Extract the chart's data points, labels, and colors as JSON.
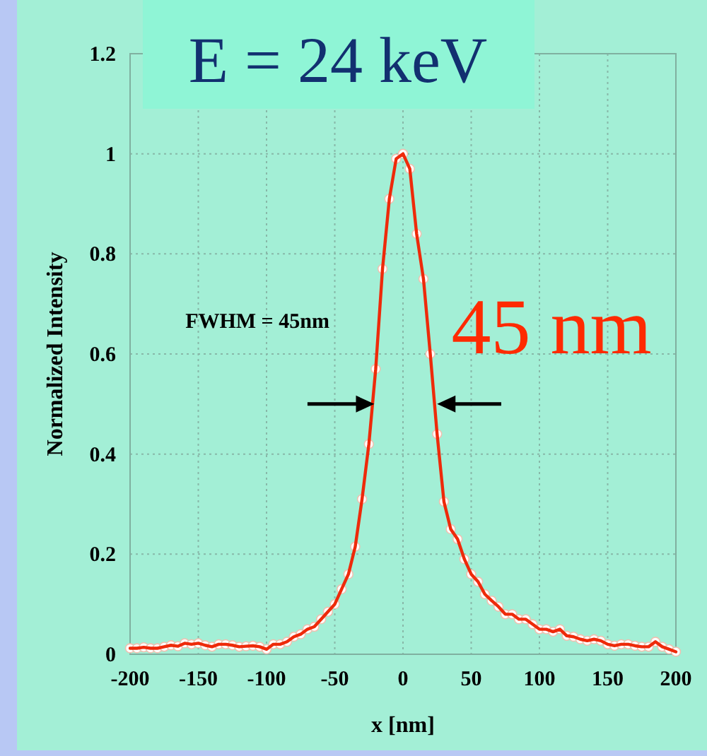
{
  "chart_data": {
    "type": "line",
    "title": "E = 24 keV",
    "xlabel": "x [nm]",
    "ylabel": "Normalized Intensity",
    "annotations": [
      "FWHM = 45nm",
      "45 nm"
    ],
    "x": [
      -200,
      -195,
      -190,
      -185,
      -180,
      -175,
      -170,
      -165,
      -160,
      -155,
      -150,
      -145,
      -140,
      -135,
      -130,
      -125,
      -120,
      -115,
      -110,
      -105,
      -100,
      -95,
      -90,
      -85,
      -80,
      -75,
      -70,
      -65,
      -60,
      -55,
      -50,
      -45,
      -40,
      -35,
      -30,
      -25,
      -20,
      -15,
      -10,
      -5,
      0,
      5,
      10,
      15,
      20,
      25,
      30,
      35,
      40,
      45,
      50,
      55,
      60,
      65,
      70,
      75,
      80,
      85,
      90,
      95,
      100,
      105,
      110,
      115,
      120,
      125,
      130,
      135,
      140,
      145,
      150,
      155,
      160,
      165,
      170,
      175,
      180,
      185,
      190,
      195,
      200
    ],
    "series": [
      {
        "color": "#ee2a0a",
        "values": [
          0.012,
          0.012,
          0.014,
          0.012,
          0.012,
          0.015,
          0.018,
          0.016,
          0.022,
          0.02,
          0.022,
          0.018,
          0.015,
          0.02,
          0.02,
          0.018,
          0.015,
          0.016,
          0.017,
          0.015,
          0.01,
          0.02,
          0.02,
          0.025,
          0.035,
          0.04,
          0.05,
          0.055,
          0.07,
          0.085,
          0.1,
          0.13,
          0.16,
          0.215,
          0.31,
          0.42,
          0.57,
          0.77,
          0.91,
          0.99,
          1.0,
          0.97,
          0.84,
          0.75,
          0.6,
          0.44,
          0.305,
          0.25,
          0.23,
          0.19,
          0.16,
          0.145,
          0.12,
          0.107,
          0.095,
          0.08,
          0.08,
          0.07,
          0.07,
          0.06,
          0.05,
          0.05,
          0.045,
          0.05,
          0.037,
          0.035,
          0.03,
          0.027,
          0.03,
          0.027,
          0.02,
          0.017,
          0.02,
          0.02,
          0.017,
          0.015,
          0.015,
          0.025,
          0.015,
          0.01,
          0.005
        ]
      }
    ],
    "xlim": [
      -200,
      200
    ],
    "xticks": [
      -200,
      -150,
      -100,
      -50,
      0,
      50,
      100,
      150,
      200
    ],
    "ylim": [
      0,
      1.2
    ],
    "yticks": [
      0,
      0.2,
      0.4,
      0.6,
      0.8,
      1,
      1.2
    ],
    "grid": true,
    "marker": "circle",
    "line_style": "solid"
  }
}
